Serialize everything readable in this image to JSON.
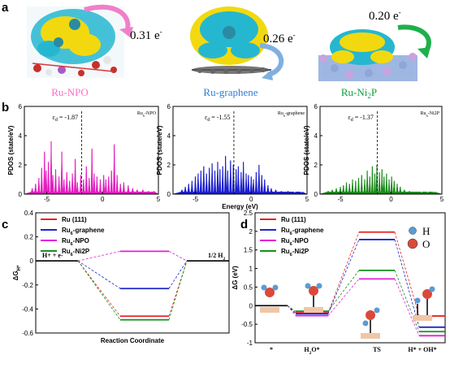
{
  "panel_labels": {
    "a": "a",
    "b": "b",
    "c": "c",
    "d": "d"
  },
  "panel_a": {
    "structures": [
      {
        "label": "Ru-NPO",
        "charge": "0.31 e",
        "color": "#ff6ec7"
      },
      {
        "label": "Ru-graphene",
        "charge": "0.26 e",
        "color": "#2f7fd6"
      },
      {
        "label": "Ru-Ni2P",
        "charge": "0.20 e",
        "color": "#11a03c"
      }
    ],
    "charge_sup": "-",
    "ni2p_sub": "2"
  },
  "chart_data": [
    {
      "panel": "b1",
      "type": "area",
      "inset_label": "Ru6-NPO",
      "eps_label": "εd = -1.87",
      "eps_value": -1.87,
      "color": "#e21fc0",
      "xlabel": "",
      "ylabel": "PDOS (state/eV)",
      "xlim": [
        -7,
        5
      ],
      "ylim": [
        0,
        6
      ],
      "xticks": [
        -5,
        0,
        5
      ],
      "yticks": [
        0,
        2,
        4,
        6
      ],
      "peaks": [
        [
          -6.3,
          0.4
        ],
        [
          -6.0,
          0.7
        ],
        [
          -5.7,
          1.1
        ],
        [
          -5.45,
          1.8
        ],
        [
          -5.2,
          2.9
        ],
        [
          -5.05,
          1.6
        ],
        [
          -4.85,
          2.2
        ],
        [
          -4.6,
          3.6
        ],
        [
          -4.45,
          1.3
        ],
        [
          -4.2,
          1.7
        ],
        [
          -3.9,
          1.2
        ],
        [
          -3.65,
          2.9
        ],
        [
          -3.45,
          1.0
        ],
        [
          -3.2,
          1.5
        ],
        [
          -2.95,
          0.9
        ],
        [
          -2.7,
          1.4
        ],
        [
          -2.45,
          2.4
        ],
        [
          -2.25,
          0.8
        ],
        [
          -1.95,
          1.3
        ],
        [
          -1.7,
          1.0
        ],
        [
          -1.45,
          1.9
        ],
        [
          -1.2,
          1.1
        ],
        [
          -0.95,
          3.1
        ],
        [
          -0.75,
          1.4
        ],
        [
          -0.5,
          1.2
        ],
        [
          -0.2,
          1.0
        ],
        [
          0.1,
          1.3
        ],
        [
          0.3,
          1.0
        ],
        [
          0.55,
          1.2
        ],
        [
          0.8,
          1.6
        ],
        [
          1.05,
          3.4
        ],
        [
          1.3,
          1.3
        ],
        [
          1.6,
          0.7
        ],
        [
          1.9,
          0.8
        ],
        [
          2.3,
          0.6
        ],
        [
          2.7,
          0.4
        ],
        [
          3.1,
          0.3
        ],
        [
          3.6,
          0.3
        ],
        [
          4.1,
          0.2
        ],
        [
          4.6,
          0.2
        ]
      ]
    },
    {
      "panel": "b2",
      "type": "area",
      "inset_label": "Ru6-graphene",
      "eps_label": "εd = -1.55",
      "eps_value": -1.55,
      "color": "#1a1fcf",
      "xlabel": "Energy (eV)",
      "ylabel": "PDOS (state/eV)",
      "xlim": [
        -7,
        5
      ],
      "ylim": [
        0,
        6
      ],
      "xticks": [
        -5,
        0,
        5
      ],
      "yticks": [
        0,
        2,
        4,
        6
      ],
      "peaks": [
        [
          -6.2,
          0.3
        ],
        [
          -5.9,
          0.5
        ],
        [
          -5.6,
          0.7
        ],
        [
          -5.3,
          0.9
        ],
        [
          -5.0,
          1.2
        ],
        [
          -4.75,
          1.4
        ],
        [
          -4.5,
          1.6
        ],
        [
          -4.25,
          1.9
        ],
        [
          -4.0,
          1.4
        ],
        [
          -3.75,
          1.8
        ],
        [
          -3.5,
          2.1
        ],
        [
          -3.25,
          1.6
        ],
        [
          -3.0,
          2.2
        ],
        [
          -2.8,
          1.7
        ],
        [
          -2.55,
          1.9
        ],
        [
          -2.3,
          2.6
        ],
        [
          -2.1,
          1.6
        ],
        [
          -1.85,
          2.3
        ],
        [
          -1.6,
          2.0
        ],
        [
          -1.35,
          1.7
        ],
        [
          -1.15,
          1.9
        ],
        [
          -0.9,
          1.5
        ],
        [
          -0.7,
          2.2
        ],
        [
          -0.45,
          1.4
        ],
        [
          -0.25,
          1.3
        ],
        [
          0.0,
          1.2
        ],
        [
          0.2,
          1.0
        ],
        [
          0.45,
          1.5
        ],
        [
          0.7,
          2.0
        ],
        [
          0.95,
          1.3
        ],
        [
          1.2,
          1.0
        ],
        [
          1.5,
          0.6
        ],
        [
          1.8,
          0.4
        ],
        [
          2.2,
          0.3
        ],
        [
          2.7,
          0.2
        ],
        [
          3.3,
          0.2
        ],
        [
          3.9,
          0.1
        ],
        [
          4.5,
          0.1
        ]
      ]
    },
    {
      "panel": "b3",
      "type": "area",
      "inset_label": "Ru6-Ni2P",
      "eps_label": "εd = -1.37",
      "eps_value": -1.37,
      "color": "#1b8a1b",
      "xlabel": "",
      "ylabel": "PDOS (state/eV)",
      "xlim": [
        -7,
        5
      ],
      "ylim": [
        0,
        6
      ],
      "xticks": [
        -5,
        0,
        5
      ],
      "yticks": [
        0,
        2,
        4,
        6
      ],
      "peaks": [
        [
          -6.2,
          0.2
        ],
        [
          -5.8,
          0.3
        ],
        [
          -5.4,
          0.4
        ],
        [
          -5.0,
          0.5
        ],
        [
          -4.7,
          0.6
        ],
        [
          -4.4,
          0.8
        ],
        [
          -4.1,
          0.7
        ],
        [
          -3.8,
          1.0
        ],
        [
          -3.5,
          0.9
        ],
        [
          -3.2,
          1.1
        ],
        [
          -2.9,
          1.3
        ],
        [
          -2.6,
          1.0
        ],
        [
          -2.35,
          1.6
        ],
        [
          -2.1,
          1.2
        ],
        [
          -1.85,
          1.9
        ],
        [
          -1.6,
          1.4
        ],
        [
          -1.4,
          2.0
        ],
        [
          -1.15,
          1.5
        ],
        [
          -0.9,
          1.7
        ],
        [
          -0.7,
          1.2
        ],
        [
          -0.45,
          1.4
        ],
        [
          -0.2,
          1.0
        ],
        [
          0.05,
          1.2
        ],
        [
          0.3,
          0.9
        ],
        [
          0.6,
          0.7
        ],
        [
          0.9,
          0.5
        ],
        [
          1.3,
          0.3
        ],
        [
          1.8,
          0.2
        ],
        [
          2.4,
          0.15
        ],
        [
          3.0,
          0.1
        ],
        [
          3.6,
          0.1
        ],
        [
          4.2,
          0.1
        ]
      ]
    },
    {
      "panel": "c",
      "type": "line",
      "xlabel": "Reaction Coordinate",
      "ylabel": "ΔGH*",
      "ylim": [
        -0.6,
        0.4
      ],
      "yticks": [
        -0.6,
        -0.4,
        -0.2,
        0.0,
        0.2,
        0.4
      ],
      "states": [
        "H+ + e-",
        "",
        "1/2 H2"
      ],
      "series": [
        {
          "name": "Ru (111)",
          "color": "#e8231f",
          "values": [
            0.0,
            -0.46,
            0.0
          ]
        },
        {
          "name": "Ru6-graphene",
          "color": "#1a28c8",
          "values": [
            0.0,
            -0.23,
            0.0
          ]
        },
        {
          "name": "Ru6-NPO",
          "color": "#e21fd9",
          "values": [
            0.0,
            0.08,
            0.0
          ]
        },
        {
          "name": "Ru6-Ni2P",
          "color": "#13921e",
          "values": [
            0.0,
            -0.49,
            0.0
          ]
        }
      ]
    },
    {
      "panel": "d",
      "type": "line",
      "xlabel": "",
      "ylabel": "ΔG (eV)",
      "ylim": [
        -1.0,
        2.5
      ],
      "yticks": [
        -1.0,
        -0.5,
        0.0,
        0.5,
        1.0,
        1.5,
        2.0,
        2.5
      ],
      "categories": [
        "*",
        "H2O*",
        "TS",
        "H* + OH*"
      ],
      "series": [
        {
          "name": "Ru (111)",
          "color": "#e8231f",
          "values": [
            0.0,
            -0.19,
            1.98,
            -0.28
          ]
        },
        {
          "name": "Ru6-graphene",
          "color": "#1a28c8",
          "values": [
            0.0,
            -0.22,
            1.78,
            -0.58
          ]
        },
        {
          "name": "Ru6-NPO",
          "color": "#e21fd9",
          "values": [
            0.0,
            -0.27,
            0.72,
            -0.81
          ]
        },
        {
          "name": "Ru6-Ni2P",
          "color": "#13921e",
          "values": [
            0.0,
            -0.15,
            0.95,
            -0.7
          ]
        }
      ],
      "atom_legend": [
        {
          "label": "H",
          "color": "#5b9bd5"
        },
        {
          "label": "O",
          "color": "#d94a3a"
        }
      ]
    }
  ]
}
